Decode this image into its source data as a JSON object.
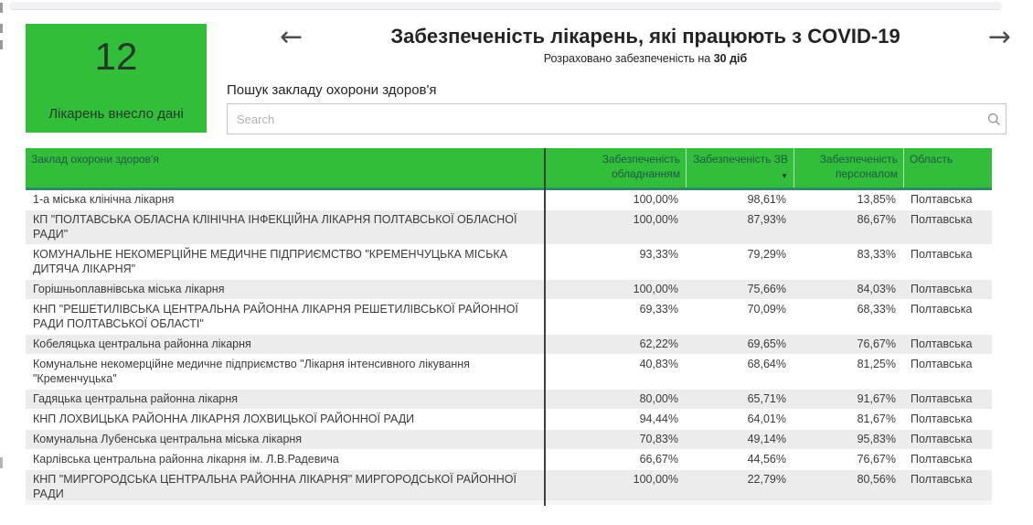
{
  "colors": {
    "green": "#32bd3b",
    "header_border": "#2f8a67",
    "header_text": "#1d5a44",
    "row_alt": "#ececec"
  },
  "kpi_card": {
    "value": "12",
    "label": "Лікарень внесло дані"
  },
  "header": {
    "title": "Забезпеченість лікарень, які працюють з COVID-19",
    "subtitle_prefix": "Розраховано забезпеченість на ",
    "subtitle_bold": "30 діб"
  },
  "icons": {
    "arrow_left": "←",
    "arrow_right": "→",
    "sort_desc": "▼",
    "search": "magnifier"
  },
  "search": {
    "label": "Пошук закладу охорони здоров'я",
    "placeholder": "Search",
    "value": ""
  },
  "table": {
    "columns": [
      {
        "key": "name",
        "label": "Заклад охорони здоров'я"
      },
      {
        "key": "equipment",
        "label": "Забезпеченість обладнанням"
      },
      {
        "key": "ppe",
        "label": "Забезпеченість ЗВ",
        "sorted": "desc"
      },
      {
        "key": "staff",
        "label": "Забезпеченість персоналом"
      },
      {
        "key": "region",
        "label": "Область"
      }
    ],
    "rows": [
      {
        "name": "1-а міська клінічна лікарня",
        "equipment": "100,00%",
        "ppe": "98,61%",
        "staff": "13,85%",
        "region": "Полтавська"
      },
      {
        "name": "КП \"ПОЛТАВСЬКА ОБЛАСНА КЛІНІЧНА ІНФЕКЦІЙНА ЛІКАРНЯ ПОЛТАВСЬКОЇ ОБЛАСНОЇ РАДИ\"",
        "equipment": "100,00%",
        "ppe": "87,93%",
        "staff": "86,67%",
        "region": "Полтавська"
      },
      {
        "name": "КОМУНАЛЬНЕ НЕКОМЕРЦІЙНЕ МЕДИЧНЕ ПІДПРИЄМСТВО \"КРЕМЕНЧУЦЬКА МІСЬКА ДИТЯЧА ЛІКАРНЯ\"",
        "equipment": "93,33%",
        "ppe": "79,29%",
        "staff": "83,33%",
        "region": "Полтавська"
      },
      {
        "name": "Горішньоплавнівська міська лікарня",
        "equipment": "100,00%",
        "ppe": "75,66%",
        "staff": "84,03%",
        "region": "Полтавська"
      },
      {
        "name": "КНП \"РЕШЕТИЛІВСЬКА ЦЕНТРАЛЬНА РАЙОННА ЛІКАРНЯ РЕШЕТИЛІВСЬКОЇ РАЙОННОЇ РАДИ ПОЛТАВСЬКОЇ ОБЛАСТІ\"",
        "equipment": "69,33%",
        "ppe": "70,09%",
        "staff": "68,33%",
        "region": "Полтавська"
      },
      {
        "name": "Кобеляцька центральна районна лікарня",
        "equipment": "62,22%",
        "ppe": "69,65%",
        "staff": "76,67%",
        "region": "Полтавська"
      },
      {
        "name": "Комунальне некомерційне медичне підприємство \"Лікарня інтенсивного лікування \"Кременчуцька\"",
        "equipment": "40,83%",
        "ppe": "68,64%",
        "staff": "81,25%",
        "region": "Полтавська"
      },
      {
        "name": "Гадяцька центральна районна лікарня",
        "equipment": "80,00%",
        "ppe": "65,71%",
        "staff": "91,67%",
        "region": "Полтавська"
      },
      {
        "name": "КНП ЛОХВИЦЬКА РАЙОННА ЛІКАРНЯ ЛОХВИЦЬКОЇ РАЙОННОЇ РАДИ",
        "equipment": "94,44%",
        "ppe": "64,01%",
        "staff": "81,67%",
        "region": "Полтавська"
      },
      {
        "name": "Комунальна Лубенська центральна міська лікарня",
        "equipment": "70,83%",
        "ppe": "49,14%",
        "staff": "95,83%",
        "region": "Полтавська"
      },
      {
        "name": "Карлівська центральна районна лікарня ім. Л.В.Радевича",
        "equipment": "66,67%",
        "ppe": "44,56%",
        "staff": "76,67%",
        "region": "Полтавська"
      },
      {
        "name": "КНП \"МИРГОРОДСЬКА ЦЕНТРАЛЬНА РАЙОННА ЛІКАРНЯ\" МИРГОРОДСЬКОЇ РАЙОННОЇ РАДИ",
        "equipment": "100,00%",
        "ppe": "22,79%",
        "staff": "80,56%",
        "region": "Полтавська"
      }
    ]
  }
}
